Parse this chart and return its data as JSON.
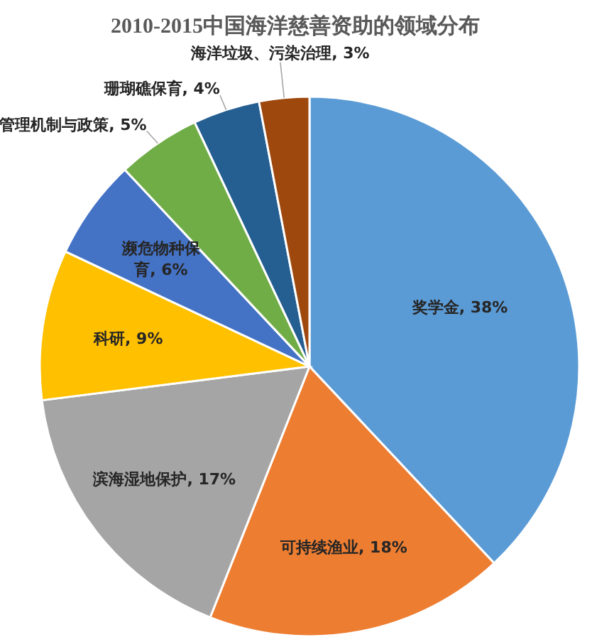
{
  "chart_data": {
    "type": "pie",
    "title": "2010-2015中国海洋慈善资助的领域分布",
    "categories": [
      "奖学金",
      "可持续渔业",
      "滨海湿地保护",
      "科研",
      "濒危物种保育",
      "管理机制与政策",
      "珊瑚礁保育",
      "海洋垃圾、污染治理"
    ],
    "values": [
      38,
      18,
      17,
      9,
      6,
      5,
      4,
      3
    ],
    "value_labels": [
      ", 38%",
      ", 18%",
      ", 17%",
      ", 9%",
      ", 6%",
      ", 5%",
      ", 4%",
      ", 3%"
    ],
    "colors": [
      "#5b9bd5",
      "#ed7d31",
      "#a5a5a5",
      "#ffc000",
      "#4472c4",
      "#70ad47",
      "#255e91",
      "#9e480e"
    ],
    "legend": false
  }
}
